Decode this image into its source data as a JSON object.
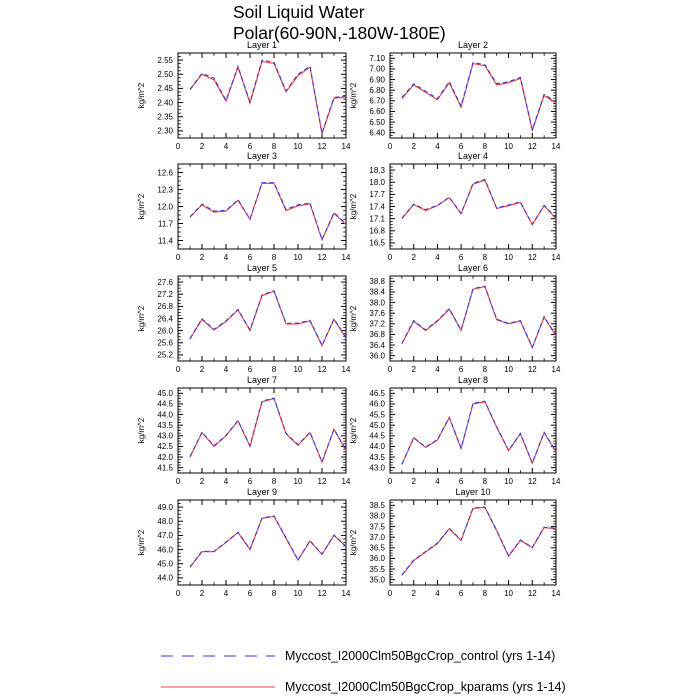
{
  "figure": {
    "title_line1": "Soil Liquid Water",
    "title_line2": "Polar(60-90N,-180W-180E)",
    "ylabel": "kg/m^2",
    "control_color": "#3b3bd4",
    "kparams_color": "#ee3b3b",
    "xticks": [
      0,
      2,
      4,
      6,
      8,
      10,
      12,
      14
    ]
  },
  "legend": {
    "items": [
      {
        "label": "Myccost_I2000Clm50BgcCrop_control (yrs 1-14)",
        "color": "#5c5cda",
        "style": "dashed"
      },
      {
        "label": "Myccost_I2000Clm50BgcCrop_kparams (yrs 1-14)",
        "color": "#ee6a6a",
        "style": "solid"
      }
    ]
  },
  "chart_data": [
    {
      "type": "line",
      "title": "Layer 1",
      "xlabel": "",
      "ylabel": "kg/m^2",
      "ylim": [
        2.3,
        2.55
      ],
      "ystep": 0.05,
      "ydecimals": 2,
      "xlim": [
        0,
        14
      ],
      "x": [
        1,
        2,
        3,
        4,
        5,
        6,
        7,
        8,
        9,
        10,
        11,
        12,
        13,
        14
      ],
      "series": [
        {
          "name": "Myccost_I2000Clm50BgcCrop_control",
          "values": [
            2.447,
            2.503,
            2.486,
            2.408,
            2.528,
            2.401,
            2.55,
            2.543,
            2.441,
            2.5,
            2.528,
            2.293,
            2.418,
            2.424
          ]
        },
        {
          "name": "Myccost_I2000Clm50BgcCrop_kparams",
          "values": [
            2.445,
            2.5,
            2.48,
            2.405,
            2.525,
            2.398,
            2.545,
            2.538,
            2.438,
            2.495,
            2.525,
            2.29,
            2.415,
            2.42
          ]
        }
      ]
    },
    {
      "type": "line",
      "title": "Layer 2",
      "xlabel": "",
      "ylabel": "kg/m^2",
      "ylim": [
        6.4,
        7.1
      ],
      "ystep": 0.1,
      "ydecimals": 2,
      "xlim": [
        0,
        14
      ],
      "x": [
        1,
        2,
        3,
        4,
        5,
        6,
        7,
        8,
        9,
        10,
        11,
        12,
        13,
        14
      ],
      "series": [
        {
          "name": "Myccost_I2000Clm50BgcCrop_control",
          "values": [
            6.73,
            6.86,
            6.79,
            6.72,
            6.88,
            6.65,
            7.06,
            7.04,
            6.86,
            6.88,
            6.92,
            6.43,
            6.76,
            6.69
          ]
        },
        {
          "name": "Myccost_I2000Clm50BgcCrop_kparams",
          "values": [
            6.72,
            6.85,
            6.78,
            6.71,
            6.87,
            6.64,
            7.05,
            7.03,
            6.85,
            6.87,
            6.91,
            6.42,
            6.75,
            6.68
          ]
        }
      ]
    },
    {
      "type": "line",
      "title": "Layer 3",
      "xlabel": "",
      "ylabel": "kg/m^2",
      "ylim": [
        11.4,
        12.6
      ],
      "ystep": 0.3,
      "ydecimals": 1,
      "xlim": [
        0,
        14
      ],
      "x": [
        1,
        2,
        3,
        4,
        5,
        6,
        7,
        8,
        9,
        10,
        11,
        12,
        13,
        14
      ],
      "series": [
        {
          "name": "Myccost_I2000Clm50BgcCrop_control",
          "values": [
            11.82,
            12.04,
            11.92,
            11.93,
            12.12,
            11.78,
            12.42,
            12.42,
            11.95,
            12.03,
            12.06,
            11.42,
            11.89,
            11.7
          ]
        },
        {
          "name": "Myccost_I2000Clm50BgcCrop_kparams",
          "values": [
            11.81,
            12.03,
            11.9,
            11.92,
            12.11,
            11.77,
            12.41,
            12.41,
            11.93,
            12.01,
            12.05,
            11.41,
            11.88,
            11.68
          ]
        }
      ]
    },
    {
      "type": "line",
      "title": "Layer 4",
      "xlabel": "",
      "ylabel": "kg/m^2",
      "ylim": [
        16.5,
        18.3
      ],
      "ystep": 0.3,
      "ydecimals": 1,
      "xlim": [
        0,
        14
      ],
      "x": [
        1,
        2,
        3,
        4,
        5,
        6,
        7,
        8,
        9,
        10,
        11,
        12,
        13,
        14
      ],
      "series": [
        {
          "name": "Myccost_I2000Clm50BgcCrop_control",
          "values": [
            17.11,
            17.46,
            17.32,
            17.43,
            17.63,
            17.23,
            17.97,
            18.07,
            17.36,
            17.44,
            17.51,
            16.96,
            17.43,
            17.12
          ]
        },
        {
          "name": "Myccost_I2000Clm50BgcCrop_kparams",
          "values": [
            17.1,
            17.45,
            17.3,
            17.42,
            17.62,
            17.22,
            17.95,
            18.05,
            17.35,
            17.42,
            17.5,
            16.95,
            17.42,
            17.1
          ]
        }
      ]
    },
    {
      "type": "line",
      "title": "Layer 5",
      "xlabel": "",
      "ylabel": "kg/m^2",
      "ylim": [
        25.2,
        27.6
      ],
      "ystep": 0.4,
      "ydecimals": 1,
      "xlim": [
        0,
        14
      ],
      "x": [
        1,
        2,
        3,
        4,
        5,
        6,
        7,
        8,
        9,
        10,
        11,
        12,
        13,
        14
      ],
      "series": [
        {
          "name": "Myccost_I2000Clm50BgcCrop_control",
          "values": [
            25.74,
            26.39,
            26.04,
            26.32,
            26.7,
            26.02,
            27.17,
            27.32,
            26.24,
            26.25,
            26.34,
            25.52,
            26.39,
            25.77
          ]
        },
        {
          "name": "Myccost_I2000Clm50BgcCrop_kparams",
          "values": [
            25.72,
            26.37,
            26.02,
            26.3,
            26.68,
            26.0,
            27.15,
            27.3,
            26.22,
            26.22,
            26.32,
            25.5,
            26.37,
            25.75
          ]
        }
      ]
    },
    {
      "type": "line",
      "title": "Layer 6",
      "xlabel": "",
      "ylabel": "kg/m^2",
      "ylim": [
        36.0,
        38.8
      ],
      "ystep": 0.4,
      "ydecimals": 1,
      "xlim": [
        0,
        14
      ],
      "x": [
        1,
        2,
        3,
        4,
        5,
        6,
        7,
        8,
        9,
        10,
        11,
        12,
        13,
        14
      ],
      "series": [
        {
          "name": "Myccost_I2000Clm50BgcCrop_control",
          "values": [
            36.47,
            37.32,
            36.97,
            37.32,
            37.77,
            36.97,
            38.52,
            38.62,
            37.37,
            37.22,
            37.32,
            36.32,
            37.47,
            36.77
          ]
        },
        {
          "name": "Myccost_I2000Clm50BgcCrop_kparams",
          "values": [
            36.45,
            37.3,
            36.95,
            37.3,
            37.75,
            36.95,
            38.5,
            38.6,
            37.35,
            37.2,
            37.3,
            36.3,
            37.45,
            36.75
          ]
        }
      ]
    },
    {
      "type": "line",
      "title": "Layer 7",
      "xlabel": "",
      "ylabel": "kg/m^2",
      "ylim": [
        41.5,
        45.0
      ],
      "ystep": 0.5,
      "ydecimals": 1,
      "xlim": [
        0,
        14
      ],
      "x": [
        1,
        2,
        3,
        4,
        5,
        6,
        7,
        8,
        9,
        10,
        11,
        12,
        13,
        14
      ],
      "series": [
        {
          "name": "Myccost_I2000Clm50BgcCrop_control",
          "values": [
            42.02,
            43.17,
            42.53,
            43.02,
            43.72,
            42.53,
            44.63,
            44.78,
            43.12,
            42.58,
            43.17,
            41.78,
            43.32,
            42.33
          ]
        },
        {
          "name": "Myccost_I2000Clm50BgcCrop_kparams",
          "values": [
            42.0,
            43.15,
            42.5,
            43.0,
            43.7,
            42.5,
            44.6,
            44.75,
            43.1,
            42.55,
            43.15,
            41.75,
            43.3,
            42.3
          ]
        }
      ]
    },
    {
      "type": "line",
      "title": "Layer 8",
      "xlabel": "",
      "ylabel": "kg/m^2",
      "ylim": [
        43.0,
        46.5
      ],
      "ystep": 0.5,
      "ydecimals": 1,
      "xlim": [
        0,
        14
      ],
      "x": [
        1,
        2,
        3,
        4,
        5,
        6,
        7,
        8,
        9,
        10,
        11,
        12,
        13,
        14
      ],
      "series": [
        {
          "name": "Myccost_I2000Clm50BgcCrop_control",
          "values": [
            43.17,
            44.42,
            43.97,
            44.32,
            45.37,
            43.92,
            46.03,
            46.13,
            44.92,
            43.82,
            44.62,
            43.22,
            44.67,
            43.77
          ]
        },
        {
          "name": "Myccost_I2000Clm50BgcCrop_kparams",
          "values": [
            43.15,
            44.4,
            43.95,
            44.3,
            45.35,
            43.9,
            46.0,
            46.1,
            44.9,
            43.8,
            44.6,
            43.2,
            44.65,
            43.75
          ]
        }
      ]
    },
    {
      "type": "line",
      "title": "Layer 9",
      "xlabel": "",
      "ylabel": "kg/m^2",
      "ylim": [
        44.0,
        49.0
      ],
      "ystep": 1.0,
      "ydecimals": 1,
      "xlim": [
        0,
        14
      ],
      "x": [
        1,
        2,
        3,
        4,
        5,
        6,
        7,
        8,
        9,
        10,
        11,
        12,
        13,
        14
      ],
      "series": [
        {
          "name": "Myccost_I2000Clm50BgcCrop_control",
          "values": [
            44.78,
            45.88,
            45.87,
            46.53,
            47.23,
            46.03,
            48.23,
            48.38,
            46.83,
            45.28,
            46.63,
            45.68,
            47.03,
            46.23
          ]
        },
        {
          "name": "Myccost_I2000Clm50BgcCrop_kparams",
          "values": [
            44.75,
            45.85,
            45.85,
            46.5,
            47.2,
            46.0,
            48.2,
            48.35,
            46.8,
            45.25,
            46.6,
            45.65,
            47.0,
            46.2
          ]
        }
      ]
    },
    {
      "type": "line",
      "title": "Layer 10",
      "xlabel": "",
      "ylabel": "kg/m^2",
      "ylim": [
        35.0,
        38.5
      ],
      "ystep": 0.5,
      "ydecimals": 1,
      "xlim": [
        0,
        14
      ],
      "x": [
        1,
        2,
        3,
        4,
        5,
        6,
        7,
        8,
        9,
        10,
        11,
        12,
        13,
        14
      ],
      "series": [
        {
          "name": "Myccost_I2000Clm50BgcCrop_control",
          "values": [
            35.22,
            35.92,
            36.32,
            36.72,
            37.42,
            36.87,
            38.37,
            38.42,
            37.32,
            36.12,
            36.87,
            36.52,
            37.47,
            37.42
          ]
        },
        {
          "name": "Myccost_I2000Clm50BgcCrop_kparams",
          "values": [
            35.2,
            35.9,
            36.3,
            36.7,
            37.4,
            36.85,
            38.35,
            38.4,
            37.3,
            36.1,
            36.85,
            36.5,
            37.45,
            37.4
          ]
        }
      ]
    }
  ]
}
